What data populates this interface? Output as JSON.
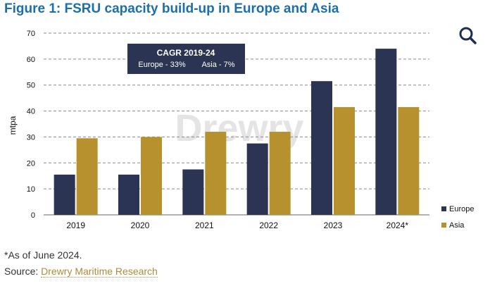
{
  "figure": {
    "title": "Figure 1: FSRU capacity build-up in Europe and Asia"
  },
  "search": {
    "icon": "search-icon"
  },
  "chart_data": {
    "type": "bar",
    "categories": [
      "2019",
      "2020",
      "2021",
      "2022",
      "2023",
      "2024*"
    ],
    "series": [
      {
        "name": "Europe",
        "color": "#2b3553",
        "values": [
          15.5,
          15.5,
          17.5,
          27.5,
          51.5,
          64
        ]
      },
      {
        "name": "Asia",
        "color": "#b8912f",
        "values": [
          29.5,
          30,
          32,
          32,
          41.5,
          41.5
        ]
      }
    ],
    "ylabel": "mtpa",
    "ylim": [
      0,
      70
    ],
    "yticks": [
      0,
      10,
      20,
      30,
      40,
      50,
      60,
      70
    ],
    "grid": true,
    "legend": "bottom-right",
    "annotation": {
      "title": "CAGR 2019-24",
      "europe_text": "Europe - 33%",
      "asia_text": "Asia - 7%"
    },
    "watermark": "Drewry"
  },
  "footnote": "*As of June 2024.",
  "source": {
    "prefix": "Source: ",
    "link_text": "Drewry Maritime Research"
  }
}
